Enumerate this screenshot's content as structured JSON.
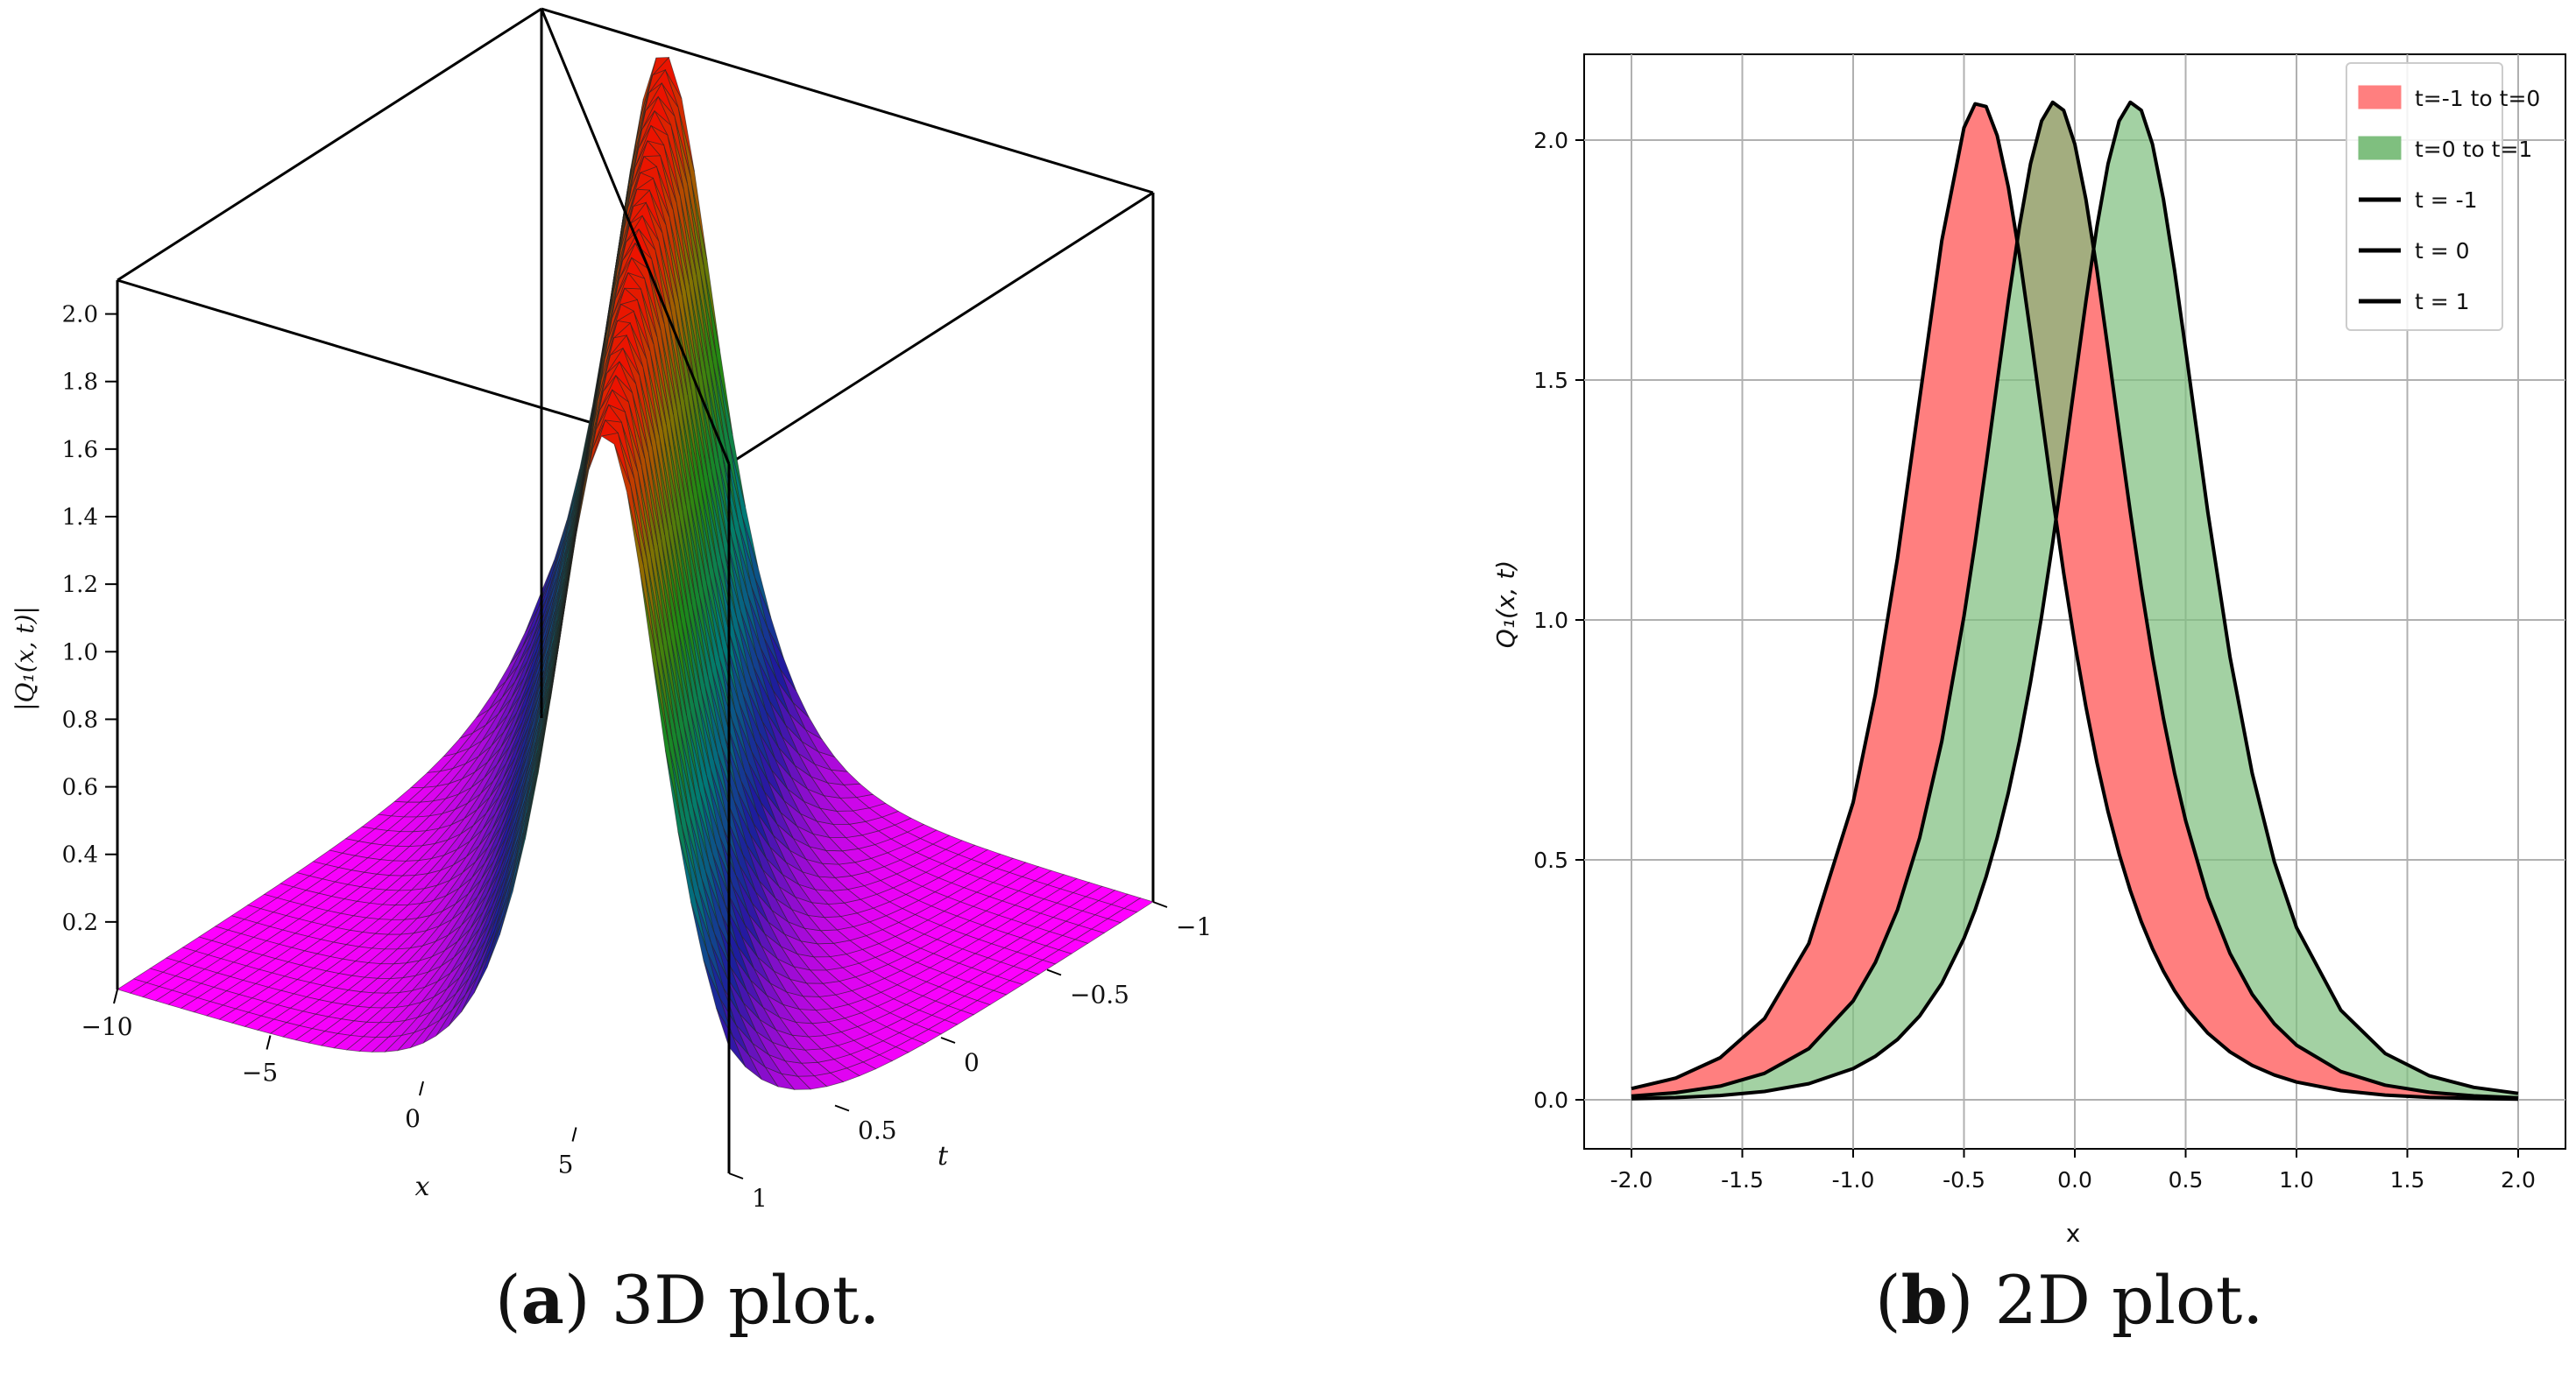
{
  "captions": {
    "a": {
      "letter": "a",
      "text": "3D plot."
    },
    "b": {
      "letter": "b",
      "text": "2D plot."
    }
  },
  "chart_data": [
    {
      "id": "a",
      "type": "surface",
      "zlabel": "|Q₁(x, t)|",
      "xlabel": "x",
      "ylabel": "t",
      "z_ticks": [
        "0.2",
        "0.4",
        "0.6",
        "0.8",
        "1.0",
        "1.2",
        "1.4",
        "1.6",
        "1.8",
        "2.0"
      ],
      "x_ticks": [
        "−10",
        "−5",
        "0",
        "5"
      ],
      "t_ticks": [
        "−1",
        "−0.5",
        "0",
        "0.5",
        "1"
      ],
      "xlim": [
        -10,
        10
      ],
      "tlim": [
        -1,
        1
      ],
      "zlim": [
        0,
        2.1
      ],
      "colormap": [
        "#ff00ff",
        "#1f1a9e",
        "#007a78",
        "#1e8a14",
        "#8f6f00",
        "#ff0000"
      ],
      "function": "2.08 sech(1.2*(x - 6t))"
    },
    {
      "id": "b",
      "type": "area",
      "xlabel": "x",
      "ylabel": "Q₁(x, t)",
      "xlim": [
        -2.0,
        2.0
      ],
      "ylim": [
        0.0,
        2.1
      ],
      "xticks": [
        "-2.0",
        "-1.5",
        "-1.0",
        "-0.5",
        "0.0",
        "0.5",
        "1.0",
        "1.5",
        "2.0"
      ],
      "yticks": [
        "0.0",
        "0.5",
        "1.0",
        "1.5",
        "2.0"
      ],
      "grid": true,
      "legend_position": "top-right",
      "x": [
        -2.0,
        -1.8,
        -1.6,
        -1.4,
        -1.2,
        -1.0,
        -0.9,
        -0.8,
        -0.7,
        -0.6,
        -0.5,
        -0.45,
        -0.4,
        -0.35,
        -0.3,
        -0.25,
        -0.2,
        -0.15,
        -0.1,
        -0.05,
        0.0,
        0.05,
        0.1,
        0.15,
        0.2,
        0.25,
        0.3,
        0.35,
        0.4,
        0.45,
        0.5,
        0.6,
        0.7,
        0.8,
        0.9,
        1.0,
        1.2,
        1.4,
        1.6,
        1.8,
        2.0
      ],
      "series": [
        {
          "name": "t = -1",
          "color": "#000000",
          "peak_x": -0.43,
          "amplitude": 2.08,
          "width": 3.3
        },
        {
          "name": "t = 0",
          "color": "#000000",
          "peak_x": -0.09,
          "amplitude": 2.08,
          "width": 3.3
        },
        {
          "name": "t = 1",
          "color": "#000000",
          "peak_x": 0.26,
          "amplitude": 2.08,
          "width": 3.3
        }
      ],
      "fills": [
        {
          "name": "t=-1 to t=0",
          "color": "#ff7f7f",
          "from": "t = -1",
          "to": "t = 0"
        },
        {
          "name": "t=0 to t=1",
          "color": "#7fbf7f",
          "from": "t = 0",
          "to": "t = 1"
        }
      ],
      "legend": [
        "t=-1 to t=0",
        "t=0 to t=1",
        "t = -1",
        "t = 0",
        "t = 1"
      ]
    }
  ]
}
